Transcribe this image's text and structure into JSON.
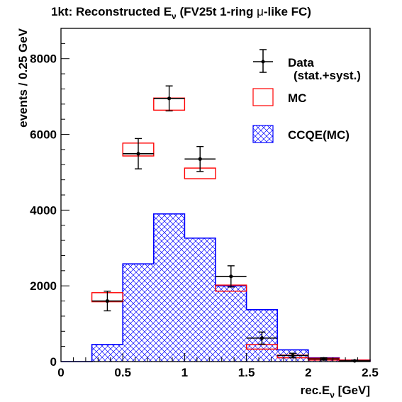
{
  "chart_data": {
    "type": "bar",
    "title_parts": {
      "prefix": "1kt: Reconstructed E",
      "sub": "ν",
      "suffix_a": " (FV25t 1-ring ",
      "mu": "μ",
      "suffix_b": "-like FC)"
    },
    "xlabel_parts": {
      "prefix": "rec.E",
      "sub": "ν",
      "suffix": " [GeV]"
    },
    "ylabel": "events / 0.25 GeV",
    "xlim": [
      0,
      2.5
    ],
    "ylim": [
      0,
      8800
    ],
    "x_ticks": [
      0,
      0.5,
      1,
      1.5,
      2,
      2.5
    ],
    "x_tick_labels": [
      "0",
      "0.5",
      "1",
      "1.5",
      "2",
      "2.5"
    ],
    "y_ticks": [
      0,
      2000,
      4000,
      6000,
      8000
    ],
    "y_tick_labels": [
      "0",
      "2000",
      "4000",
      "6000",
      "8000"
    ],
    "bin_edges": [
      0,
      0.25,
      0.5,
      0.75,
      1.0,
      1.25,
      1.5,
      1.75,
      2.0,
      2.25,
      2.5
    ],
    "series": [
      {
        "name": "CCQE(MC)",
        "kind": "hatched-histogram",
        "values": [
          0,
          450,
          2580,
          3900,
          3260,
          2000,
          1370,
          310,
          100,
          40
        ]
      },
      {
        "name": "MC",
        "kind": "box",
        "lower": [
          null,
          1580,
          5430,
          6640,
          4830,
          1860,
          330,
          100,
          40,
          15
        ],
        "upper": [
          null,
          1820,
          5770,
          6960,
          5110,
          2020,
          450,
          170,
          90,
          40
        ]
      },
      {
        "name": "Data",
        "kind": "points-with-errors",
        "x": [
          0.375,
          0.625,
          0.875,
          1.125,
          1.375,
          1.625,
          1.875,
          2.125,
          2.375
        ],
        "y": [
          1600,
          5490,
          6950,
          5350,
          2250,
          620,
          160,
          70,
          20
        ],
        "yerr": [
          260,
          400,
          330,
          330,
          280,
          160,
          60,
          30,
          15
        ]
      }
    ],
    "legend": {
      "placement": "top-right",
      "entries": [
        {
          "label": "Data",
          "sublabel": "(stat.+syst.)",
          "marker": "point-with-errors"
        },
        {
          "label": "MC",
          "marker": "red-box"
        },
        {
          "label": "CCQE(MC)",
          "marker": "blue-hatch"
        }
      ]
    },
    "colors": {
      "mc": "#ff0000",
      "ccqe": "#0000ff",
      "data": "#000000",
      "frame": "#000000"
    }
  }
}
